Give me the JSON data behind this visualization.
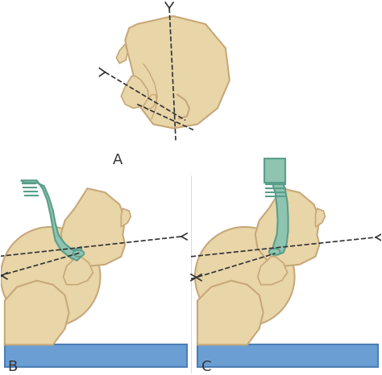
{
  "background_color": "#ffffff",
  "skin_color": "#e8d5a8",
  "skin_edge_color": "#c8a878",
  "tube_color": "#8ec4b0",
  "tube_edge_color": "#5a9e8a",
  "pillow_color": "#6b9fd4",
  "pillow_edge_color": "#4a7eb5",
  "dashed_color": "#333333",
  "label_color": "#333333",
  "label_fontsize": 13,
  "title": "",
  "panel_labels": [
    "A",
    "B",
    "C"
  ]
}
